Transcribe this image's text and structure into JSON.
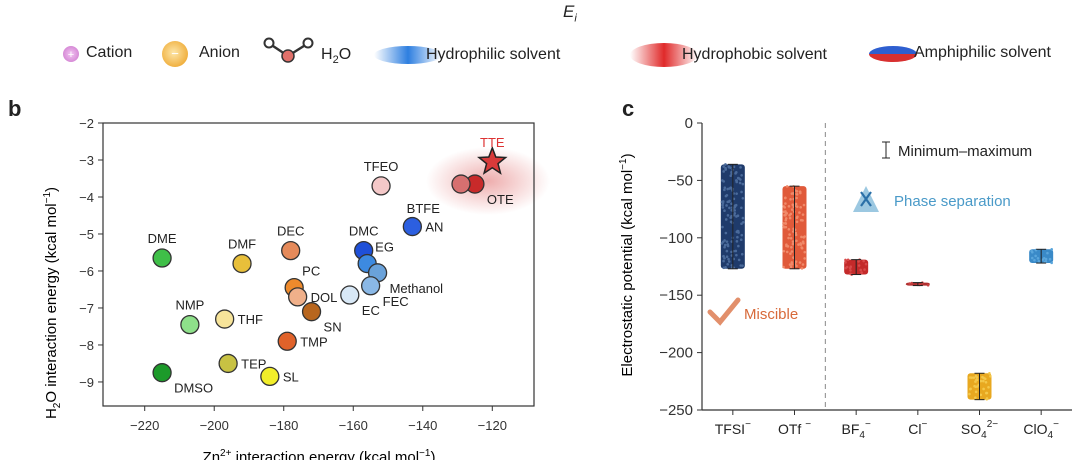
{
  "header": {
    "symbol": "E",
    "symbol_sub": "i"
  },
  "legend": {
    "cation": "Cation",
    "anion": "Anion",
    "water_main": "H",
    "water_sub": "2",
    "water_end": "O",
    "hydrophilic": "Hydrophilic solvent",
    "hydrophobic": "Hydrophobic solvent",
    "amphiphilic": "Amphiphilic solvent"
  },
  "panels": {
    "b": "b",
    "c": "c"
  },
  "chart_data": [
    {
      "type": "scatter",
      "panel": "b",
      "xlabel_main": "Zn",
      "xlabel_sup": "2+",
      "xlabel_rest": " interaction energy (kcal mol",
      "xlabel_sup2": "−1",
      "xlabel_end": ")",
      "ylabel_main": "H",
      "ylabel_sub": "2",
      "ylabel_rest": "O interaction energy (kcal mol",
      "ylabel_sup": "−1",
      "ylabel_end": ")",
      "xlim": [
        -232,
        -108
      ],
      "ylim": [
        -9.65,
        -2
      ],
      "xticks": [
        -220,
        -200,
        -180,
        -160,
        -140,
        -120
      ],
      "xtick_labels": [
        "−220",
        "−200",
        "−180",
        "−160",
        "−140",
        "−120"
      ],
      "yticks": [
        -2,
        -3,
        -4,
        -5,
        -6,
        -7,
        -8,
        -9
      ],
      "ytick_labels": [
        "−2",
        "−3",
        "−4",
        "−5",
        "−6",
        "−7",
        "−8",
        "−9"
      ],
      "points": [
        {
          "label": "DME",
          "x": -215,
          "y": -5.65,
          "color": "#3fbf48",
          "label_pos": "above"
        },
        {
          "label": "DMF",
          "x": -192,
          "y": -5.8,
          "color": "#e8bf3a",
          "label_pos": "above"
        },
        {
          "label": "NMP",
          "x": -207,
          "y": -7.45,
          "color": "#8ee08a",
          "label_pos": "above"
        },
        {
          "label": "THF",
          "x": -197,
          "y": -7.3,
          "color": "#f7e49a",
          "label_pos": "right"
        },
        {
          "label": "TEP",
          "x": -196,
          "y": -8.5,
          "color": "#c8c243",
          "label_pos": "right"
        },
        {
          "label": "DMSO",
          "x": -215,
          "y": -8.75,
          "color": "#1c9a2a",
          "label_pos": "below-right"
        },
        {
          "label": "SL",
          "x": -184,
          "y": -8.85,
          "color": "#f2ee2a",
          "label_pos": "right"
        },
        {
          "label": "TMP",
          "x": -179,
          "y": -7.9,
          "color": "#e0622a",
          "label_pos": "right"
        },
        {
          "label": "DEC",
          "x": -178,
          "y": -5.45,
          "color": "#e58a5a",
          "label_pos": "above"
        },
        {
          "label": "PC",
          "x": -177,
          "y": -6.45,
          "color": "#ee8a2c",
          "label_pos": "above-right"
        },
        {
          "label": "DOL",
          "x": -176,
          "y": -6.7,
          "color": "#f0b08a",
          "label_pos": "right"
        },
        {
          "label": "SN",
          "x": -172,
          "y": -7.1,
          "color": "#b8661e",
          "label_pos": "below-right"
        },
        {
          "label": "EC",
          "x": -161,
          "y": -6.65,
          "color": "#d8e8f6",
          "label_pos": "below-right"
        },
        {
          "label": "DMC",
          "x": -157,
          "y": -5.45,
          "color": "#1f50d8",
          "label_pos": "above"
        },
        {
          "label": "EG",
          "x": -156,
          "y": -5.8,
          "color": "#3d8ae0",
          "label_pos": "above-right"
        },
        {
          "label": "Methanol",
          "x": -153,
          "y": -6.05,
          "color": "#6aa2da",
          "label_pos": "below-right"
        },
        {
          "label": "FEC",
          "x": -155,
          "y": -6.4,
          "color": "#8ab8e6",
          "label_pos": "below-right"
        },
        {
          "label": "AN",
          "x": -143,
          "y": -4.8,
          "color": "#2c5fe0",
          "label_pos": "right"
        },
        {
          "label": "BTFE",
          "x": -141,
          "y": -4.3,
          "color": "#2c5fe0",
          "label_pos": "none"
        },
        {
          "label": "TFEO",
          "x": -152,
          "y": -3.7,
          "color": "#f4c8c8",
          "label_pos": "above"
        },
        {
          "label": "OTE",
          "x": -125,
          "y": -3.65,
          "color": "#c82a2a",
          "label_pos": "below-right"
        },
        {
          "label": "",
          "x": -129,
          "y": -3.65,
          "color": "#d67070",
          "label_pos": "none"
        },
        {
          "label": "TTE",
          "x": -120,
          "y": -3.05,
          "color": "#d83a3a",
          "label_pos": "above",
          "marker": "star"
        }
      ],
      "highlight_label": "BTFE"
    },
    {
      "type": "box",
      "panel": "c",
      "ylabel_main": "Electrostatic potential (kcal mol",
      "ylabel_sup": "−1",
      "ylabel_end": ")",
      "ylim": [
        -250,
        0
      ],
      "yticks": [
        0,
        -50,
        -100,
        -150,
        -200,
        -250
      ],
      "ytick_labels": [
        "0",
        "−50",
        "−100",
        "−150",
        "−200",
        "−250"
      ],
      "categories": [
        {
          "main": "TFSI",
          "sup": "−",
          "sub": "",
          "min": -127,
          "max": -36,
          "color": "#1f3b6b",
          "dots": "#4a6a9a"
        },
        {
          "main": "OTf ",
          "sup": "−",
          "sub": "",
          "min": -127,
          "max": -55,
          "color": "#e05a3a",
          "dots": "#f08a6a"
        },
        {
          "main": "BF",
          "sub": "4",
          "sup": "−",
          "min": -132,
          "max": -119,
          "color": "#c42a2a",
          "dots": "#d84a4a"
        },
        {
          "main": "Cl",
          "sup": "−",
          "sub": "",
          "min": -141,
          "max": -139,
          "color": "#b03030",
          "dots": "#c84040"
        },
        {
          "main": "SO",
          "sub": "4",
          "sup": "2−",
          "min": -241,
          "max": -218,
          "color": "#e8a820",
          "dots": "#f4c84a"
        },
        {
          "main": "ClO",
          "sub": "4",
          "sup": "−",
          "min": -122,
          "max": -110,
          "color": "#3a8ac8",
          "dots": "#5aa6dc"
        }
      ],
      "annotations": {
        "range_legend": "Minimum–maximum",
        "phase_separation": "Phase separation",
        "miscible": "Miscible"
      },
      "colors": {
        "phase": "#4a9ac8",
        "miscible": "#d86a3a"
      }
    }
  ]
}
